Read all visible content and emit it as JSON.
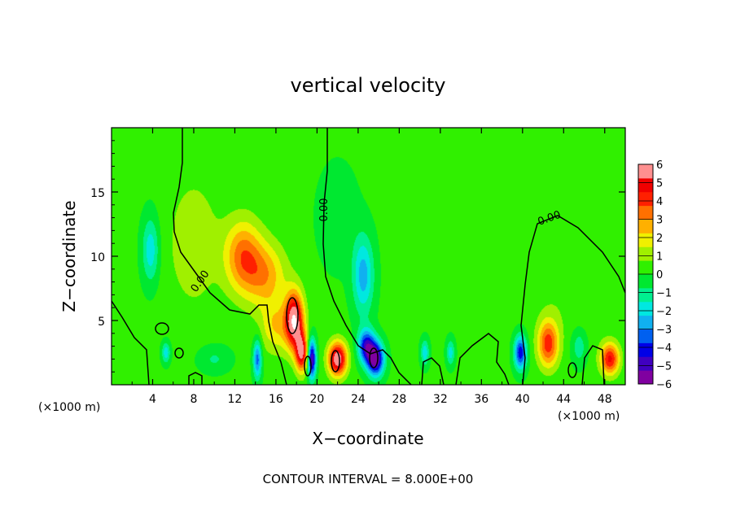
{
  "chart_data": {
    "type": "heatmap",
    "title": "vertical velocity",
    "xlabel": "X−coordinate",
    "ylabel": "Z−coordinate",
    "x_unit": "(×1000 m)",
    "x_unit_right": "(×1000 m)",
    "xlim": [
      0,
      50
    ],
    "ylim": [
      0,
      20
    ],
    "x_ticks": [
      "4",
      "8",
      "12",
      "16",
      "20",
      "24",
      "28",
      "32",
      "36",
      "40",
      "44",
      "48"
    ],
    "y_ticks": [
      "5",
      "10",
      "15"
    ],
    "contour_label": "0.00",
    "footer": "CONTOUR INTERVAL = 8.000E+00",
    "colorbar": {
      "min": -6,
      "max": 6,
      "labels": [
        "6",
        "5",
        "4",
        "3",
        "2",
        "1",
        "0",
        "−1",
        "−2",
        "−3",
        "−4",
        "−5",
        "−6"
      ],
      "colors": [
        "#8000a0",
        "#4000c0",
        "#0000e6",
        "#0060f0",
        "#10b0f0",
        "#00e8e0",
        "#00f090",
        "#00e830",
        "#30f000",
        "#a0f000",
        "#f0f000",
        "#ffb000",
        "#ff7000",
        "#ff2000",
        "#f00000",
        "#ff9090"
      ]
    },
    "features": [
      {
        "x": 17.8,
        "z": 5.0,
        "w": 6.0,
        "sx": 0.9,
        "sz": 2.2
      },
      {
        "x": 18.5,
        "z": 2.5,
        "w": 5.0,
        "sx": 0.6,
        "sz": 1.5
      },
      {
        "x": 22.0,
        "z": 2.0,
        "w": 6.0,
        "sx": 0.9,
        "sz": 1.3
      },
      {
        "x": 25.7,
        "z": 2.0,
        "w": -6.0,
        "sx": 0.8,
        "sz": 1.3
      },
      {
        "x": 12.8,
        "z": 10.0,
        "w": 3.2,
        "sx": 1.8,
        "sz": 2.8
      },
      {
        "x": 15.0,
        "z": 8.5,
        "w": 2.5,
        "sx": 2.0,
        "sz": 2.5
      },
      {
        "x": 24.5,
        "z": 8.5,
        "w": -2.8,
        "sx": 1.0,
        "sz": 3.0
      },
      {
        "x": 24.8,
        "z": 3.0,
        "w": -4.5,
        "sx": 0.8,
        "sz": 1.3
      },
      {
        "x": 3.8,
        "z": 10.5,
        "w": -2.2,
        "sx": 0.8,
        "sz": 2.5
      },
      {
        "x": 19.5,
        "z": 2.0,
        "w": -5.5,
        "sx": 0.4,
        "sz": 1.5
      },
      {
        "x": 14.2,
        "z": 2.0,
        "w": -3.5,
        "sx": 0.4,
        "sz": 1.5
      },
      {
        "x": 42.5,
        "z": 3.2,
        "w": 4.0,
        "sx": 1.0,
        "sz": 1.8
      },
      {
        "x": 48.5,
        "z": 2.0,
        "w": 4.5,
        "sx": 0.9,
        "sz": 1.2
      },
      {
        "x": 39.8,
        "z": 2.5,
        "w": -4.5,
        "sx": 0.6,
        "sz": 1.3
      },
      {
        "x": 45.5,
        "z": 3.0,
        "w": -1.5,
        "sx": 0.8,
        "sz": 1.5
      },
      {
        "x": 16.0,
        "z": 4.5,
        "w": 2.0,
        "sx": 1.5,
        "sz": 2.0
      },
      {
        "x": 30.5,
        "z": 2.5,
        "w": -2.2,
        "sx": 0.4,
        "sz": 1.0
      },
      {
        "x": 33.0,
        "z": 2.5,
        "w": -2.0,
        "sx": 0.4,
        "sz": 1.0
      },
      {
        "x": 5.3,
        "z": 2.5,
        "w": -2.2,
        "sx": 0.4,
        "sz": 0.8
      },
      {
        "x": 10.0,
        "z": 2.0,
        "w": -1.0,
        "sx": 1.5,
        "sz": 1.0
      },
      {
        "x": 8.0,
        "z": 11.0,
        "w": 1.2,
        "sx": 2.5,
        "sz": 5.0
      },
      {
        "x": 45.0,
        "z": 8.0,
        "w": 0.6,
        "sx": 4.0,
        "sz": 5.0
      },
      {
        "x": 22.0,
        "z": 13.0,
        "w": -0.6,
        "sx": 2.0,
        "sz": 4.0
      }
    ]
  }
}
